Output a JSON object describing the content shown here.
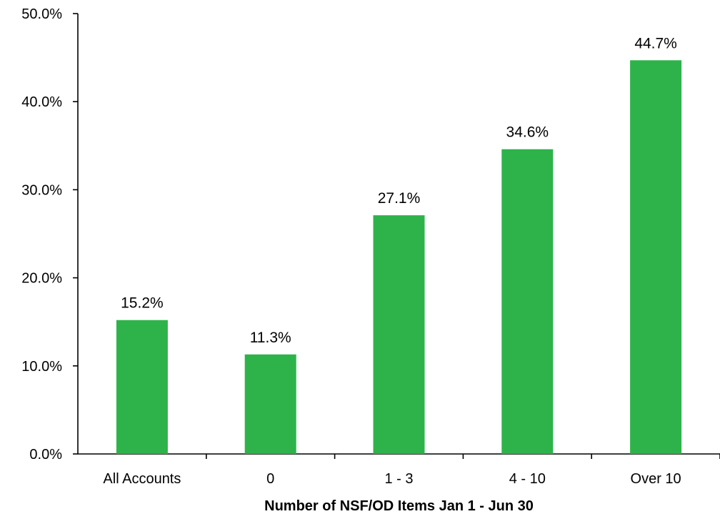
{
  "chart_data": {
    "type": "bar",
    "title": "",
    "xlabel": "Number of NSF/OD Items Jan 1 - Jun 30",
    "ylabel": "",
    "categories": [
      "All Accounts",
      "0",
      "1 - 3",
      "4 - 10",
      "Over 10"
    ],
    "values": [
      15.2,
      11.3,
      27.1,
      34.6,
      44.7
    ],
    "value_labels": [
      "15.2%",
      "11.3%",
      "27.1%",
      "34.6%",
      "44.7%"
    ],
    "ylim": [
      0,
      50
    ],
    "yticks": [
      0,
      10,
      20,
      30,
      40,
      50
    ],
    "ytick_labels": [
      "0.0%",
      "10.0%",
      "20.0%",
      "30.0%",
      "40.0%",
      "50.0%"
    ],
    "grid": false,
    "legend": "none",
    "colors": {
      "bar": "#2db34a",
      "axis": "#000000",
      "text": "#000000"
    }
  }
}
